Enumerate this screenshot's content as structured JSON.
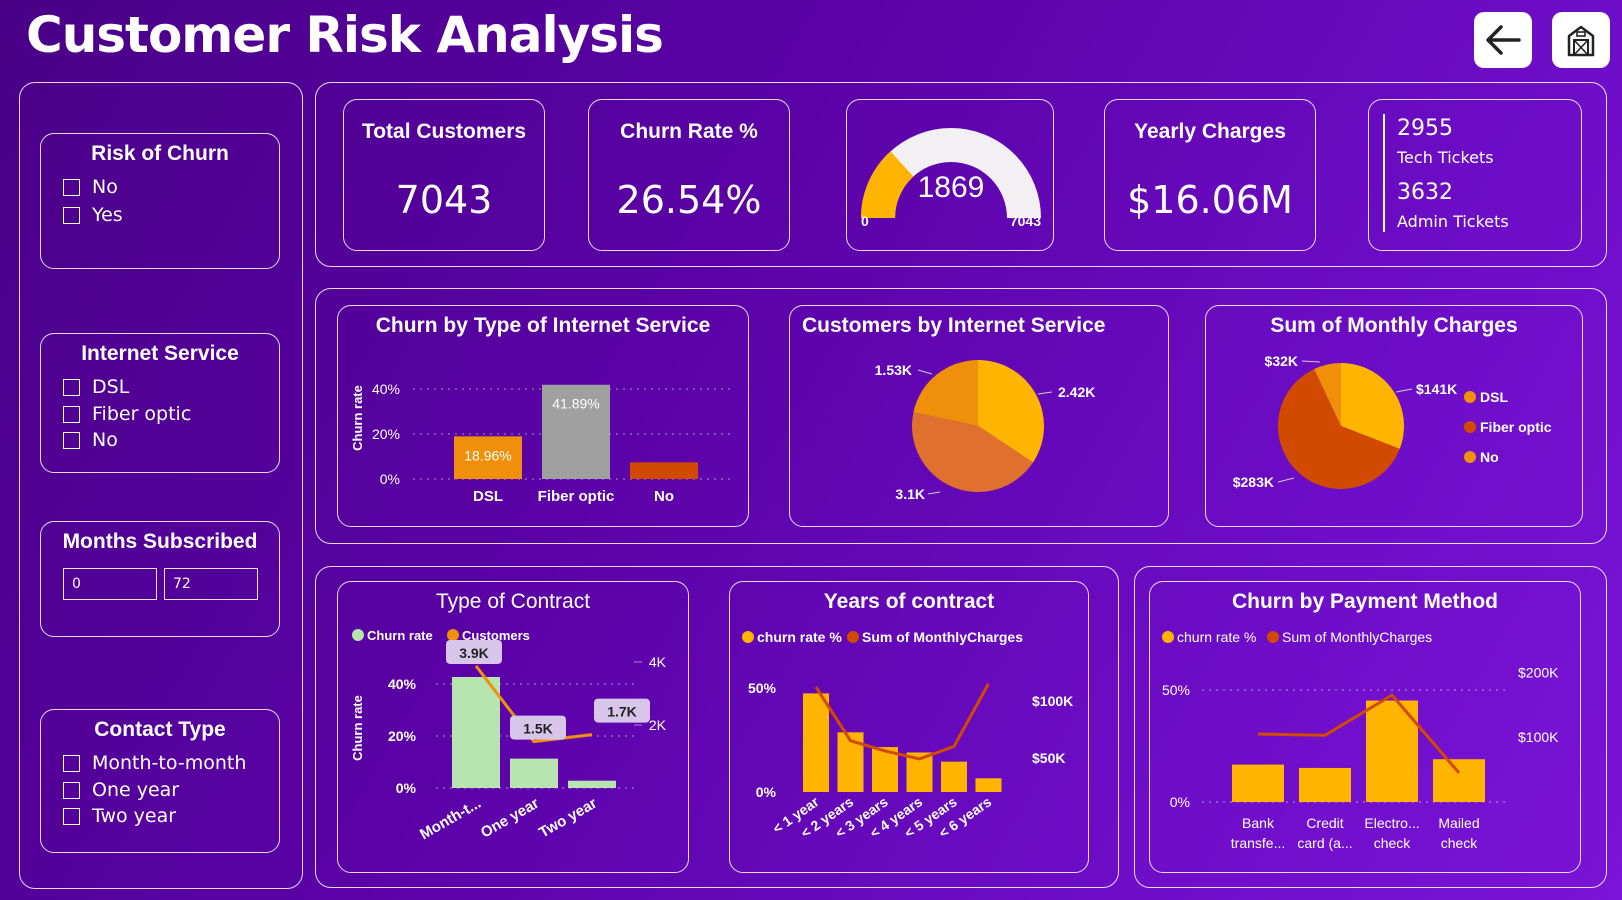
{
  "header": {
    "title": "Customer Risk Analysis",
    "back_icon": "back-arrow-icon",
    "home_icon": "home-icon"
  },
  "filters": {
    "risk": {
      "title": "Risk of Churn",
      "options": [
        "No",
        "Yes"
      ]
    },
    "internet": {
      "title": "Internet Service",
      "options": [
        "DSL",
        "Fiber optic",
        "No"
      ]
    },
    "months": {
      "title": "Months Subscribed",
      "min": "0",
      "max": "72"
    },
    "contact": {
      "title": "Contact Type",
      "options": [
        "Month-to-month",
        "One year",
        "Two year"
      ]
    }
  },
  "kpis": {
    "total_customers": {
      "title": "Total Customers",
      "value": "7043"
    },
    "churn_rate": {
      "title": "Churn Rate %",
      "value": "26.54%"
    },
    "gauge": {
      "value": "1869",
      "min": "0",
      "max": "7043",
      "current": 1869,
      "maximum": 7043
    },
    "yearly_charges": {
      "title": "Yearly Charges",
      "value": "$16.06M"
    },
    "tickets": {
      "tech_value": "2955",
      "tech_label": "Tech Tickets",
      "admin_value": "3632",
      "admin_label": "Admin Tickets"
    }
  },
  "colors": {
    "orange": "#f0900a",
    "yellow": "#ffb400",
    "deep_orange": "#d14a00",
    "grey": "#a0a0a0",
    "green": "#b8e4b0",
    "mid_orange": "#e0702d"
  },
  "chart_data": [
    {
      "id": "churn-by-internet",
      "type": "bar",
      "title": "Churn by Type of Internet Service",
      "ylabel": "Churn rate",
      "categories": [
        "DSL",
        "Fiber optic",
        "No"
      ],
      "values": [
        18.96,
        41.89,
        7.4
      ],
      "data_labels": [
        "18.96%",
        "41.89%",
        ""
      ],
      "yticks": [
        "0%",
        "20%",
        "40%"
      ],
      "ylim": [
        0,
        45
      ]
    },
    {
      "id": "customers-by-internet",
      "type": "pie",
      "title": "Customers by Internet Service",
      "values": [
        2.42,
        3.1,
        1.53
      ],
      "labels": [
        "2.42K",
        "3.1K",
        "1.53K"
      ]
    },
    {
      "id": "monthly-charges",
      "type": "pie",
      "title": "Sum of Monthly Charges",
      "values": [
        141,
        283,
        32
      ],
      "labels": [
        "$141K",
        "$283K",
        "$32K"
      ],
      "legend": [
        "DSL",
        "Fiber optic",
        "No"
      ],
      "legend_position": "right"
    },
    {
      "id": "type-of-contract",
      "type": "bar",
      "title": "Type of Contract",
      "ylabel": "Churn rate",
      "legend": [
        "Churn rate",
        "Customers"
      ],
      "categories": [
        "Month-t...",
        "One year",
        "Two year"
      ],
      "churn_rate": [
        42.7,
        11.3,
        2.8
      ],
      "customers": [
        3875,
        1473,
        1695
      ],
      "data_labels": [
        "3.9K",
        "1.5K",
        "1.7K"
      ],
      "yticks": [
        "0%",
        "20%",
        "40%"
      ],
      "y2ticks": [
        "2K",
        "4K"
      ],
      "ylim": [
        0,
        50
      ],
      "y2lim": [
        0,
        4000
      ]
    },
    {
      "id": "years-of-contract",
      "type": "bar",
      "title": "Years of contract",
      "legend": [
        "churn rate %",
        "Sum of MonthlyCharges"
      ],
      "categories": [
        "< 1 year",
        "< 2 years",
        "< 3 years",
        "< 4 years",
        "< 5 years",
        "< 6 years"
      ],
      "churn_rate": [
        47.4,
        28.7,
        21.6,
        19.0,
        14.6,
        6.6
      ],
      "monthly_charges": [
        112000,
        65000,
        56000,
        49000,
        60000,
        115000
      ],
      "yticks": [
        "0%",
        "50%"
      ],
      "y2ticks": [
        "$50K",
        "$100K"
      ],
      "ylim": [
        0,
        55
      ],
      "y2lim": [
        20000,
        120000
      ]
    },
    {
      "id": "churn-by-payment",
      "type": "bar",
      "title": "Churn by Payment Method",
      "legend": [
        "churn rate %",
        "Sum of MonthlyCharges"
      ],
      "categories": [
        [
          "Bank",
          "transfe..."
        ],
        [
          "Credit",
          "card (a..."
        ],
        [
          "Electro...",
          "check"
        ],
        [
          "Mailed",
          "check"
        ]
      ],
      "churn_rate": [
        16.7,
        15.2,
        45.3,
        19.1
      ],
      "monthly_charges": [
        105000,
        103000,
        165000,
        45000
      ],
      "yticks": [
        "0%",
        "50%"
      ],
      "y2ticks": [
        "$100K",
        "$200K"
      ],
      "ylim": [
        0,
        60
      ],
      "y2lim": [
        0,
        210000
      ]
    }
  ]
}
